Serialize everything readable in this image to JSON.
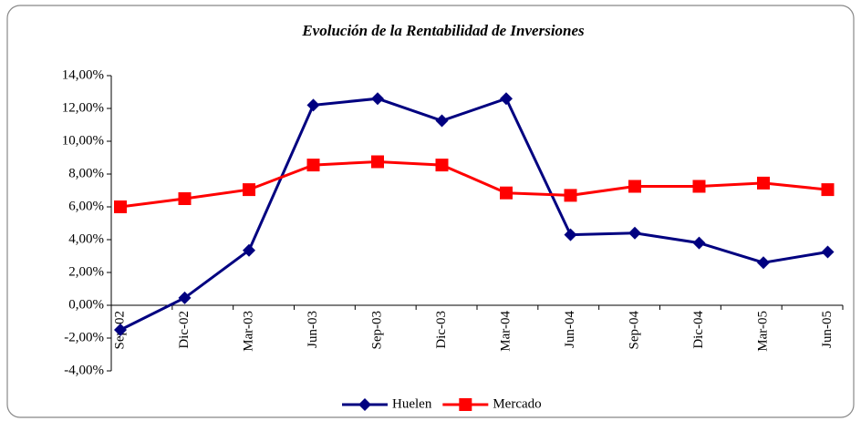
{
  "chart_data": {
    "type": "line",
    "title": "Evolución de la Rentabilidad de Inversiones",
    "categories": [
      "Sep-02",
      "Dic-02",
      "Mar-03",
      "Jun-03",
      "Sep-03",
      "Dic-03",
      "Mar-04",
      "Jun-04",
      "Sep-04",
      "Dic-04",
      "Mar-05",
      "Jun-05"
    ],
    "series": [
      {
        "name": "Huelen",
        "color": "#000080",
        "marker": "diamond",
        "values": [
          -1.5,
          0.45,
          3.35,
          12.2,
          12.6,
          11.25,
          12.6,
          4.3,
          4.4,
          3.8,
          2.6,
          3.25
        ]
      },
      {
        "name": "Mercado",
        "color": "#ff0000",
        "marker": "square",
        "values": [
          6.0,
          6.5,
          7.05,
          8.55,
          8.75,
          8.55,
          6.85,
          6.7,
          7.25,
          7.25,
          7.45,
          7.05
        ]
      }
    ],
    "ylim": [
      -4,
      14
    ],
    "yticks": [
      {
        "value": -4,
        "label": "-4,00%"
      },
      {
        "value": -2,
        "label": "-2,00%"
      },
      {
        "value": 0,
        "label": "0,00%"
      },
      {
        "value": 2,
        "label": "2,00%"
      },
      {
        "value": 4,
        "label": "4,00%"
      },
      {
        "value": 6,
        "label": "6,00%"
      },
      {
        "value": 8,
        "label": "8,00%"
      },
      {
        "value": 10,
        "label": "10,00%"
      },
      {
        "value": 12,
        "label": "12,00%"
      },
      {
        "value": 14,
        "label": "14,00%"
      }
    ],
    "legend": "bottom"
  }
}
